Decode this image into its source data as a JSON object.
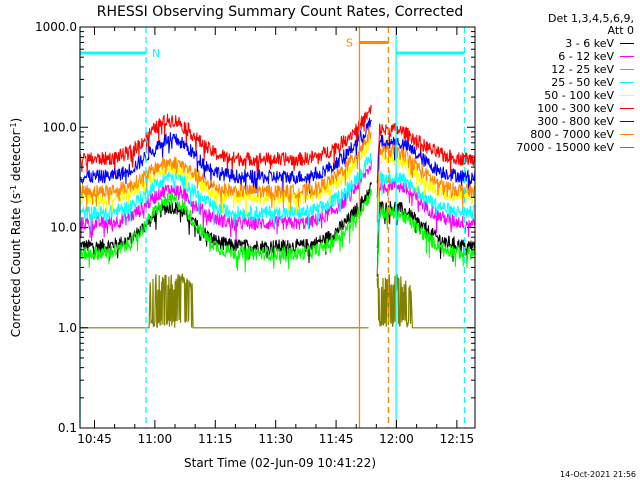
{
  "chart_data": {
    "type": "line",
    "title": "RHESSI Observing Summary Count Rates, Corrected",
    "xlabel": "Start Time (02-Jun-09 10:41:22)",
    "ylabel": "Corrected Count Rate (s⁻¹ detector⁻¹)",
    "ylabel_main": "Corrected Count Rate (s",
    "ylabel_mid": " detector",
    "ylabel_close": ")",
    "ylabel_sup": "-1",
    "x_range_minutes": [
      41.4,
      139.5
    ],
    "x_ticks": [
      {
        "minute": 45,
        "label": "10:45"
      },
      {
        "minute": 60,
        "label": "11:00"
      },
      {
        "minute": 75,
        "label": "11:15"
      },
      {
        "minute": 90,
        "label": "11:30"
      },
      {
        "minute": 105,
        "label": "11:45"
      },
      {
        "minute": 120,
        "label": "12:00"
      },
      {
        "minute": 135,
        "label": "12:15"
      }
    ],
    "y_scale": "log",
    "ylim": [
      0.1,
      1000
    ],
    "y_ticks": [
      {
        "value": 1000,
        "label": "1000.0"
      },
      {
        "value": 100,
        "label": "100.0"
      },
      {
        "value": 10,
        "label": "10.0"
      },
      {
        "value": 1,
        "label": "1.0"
      },
      {
        "value": 0.1,
        "label": "0.1"
      }
    ],
    "legend_header": [
      "Det 1,3,4,5,6,9,",
      "Att 0"
    ],
    "legend_placement": "right",
    "series": [
      {
        "name": "3 - 6 keV",
        "color": "#000000",
        "base": 6.5,
        "peak": 16,
        "edge": 16
      },
      {
        "name": "6 - 12 keV",
        "color": "#ff00ff",
        "base": 11,
        "peak": 24,
        "edge": 27
      },
      {
        "name": "12 - 25 keV",
        "color": "#00ff00",
        "base": 5.5,
        "peak": 19,
        "edge": 14
      },
      {
        "name": "25 - 50 keV",
        "color": "#00ffff",
        "base": 14,
        "peak": 32,
        "edge": 32
      },
      {
        "name": "50 - 100 keV",
        "color": "#ffff00",
        "base": 20,
        "peak": 40,
        "edge": 48
      },
      {
        "name": "100 - 300 keV",
        "color": "#ff0000",
        "base": 48,
        "peak": 118,
        "edge": 95
      },
      {
        "name": "300 - 800 keV",
        "color": "#0000ff",
        "base": 32,
        "peak": 76,
        "edge": 72
      },
      {
        "name": "800 - 7000 keV",
        "color": "#ff8800",
        "base": 23,
        "peak": 45,
        "edge": 58
      },
      {
        "name": "7000 - 15000 keV",
        "color": "#808000",
        "base": 1.0,
        "peak": 3.0,
        "edge": 1.0
      }
    ],
    "data_gaps_minutes": [
      [
        113.8,
        115.2
      ]
    ],
    "segments": [
      {
        "start_minute": 41.4,
        "end_minute": 113.8
      },
      {
        "start_minute": 115.2,
        "end_minute": 139.5
      }
    ],
    "annotations": [
      {
        "label": "N",
        "type": "night",
        "color": "#00ffff",
        "bar_y": 550,
        "spans_minutes": [
          [
            41.4,
            57.8
          ],
          [
            119.9,
            136.9
          ]
        ]
      },
      {
        "label": "S",
        "type": "saa",
        "color": "#ff8800",
        "bar_y": 700,
        "spans_minutes": [
          [
            110.8,
            118.0
          ]
        ]
      }
    ],
    "grid": false
  },
  "footer": {
    "timestamp": "14-Oct-2021 21:56"
  }
}
